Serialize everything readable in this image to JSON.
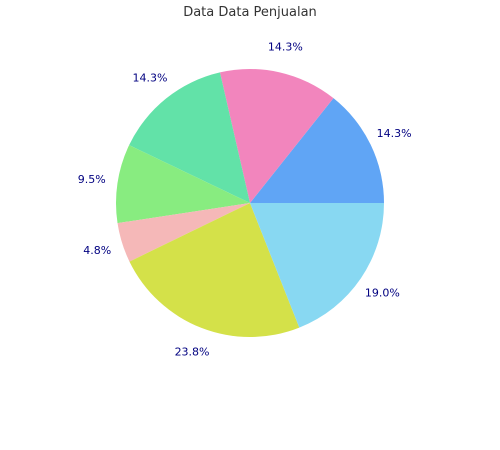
{
  "chart_data": {
    "type": "pie",
    "title": "Data Data Penjualan",
    "start": "right-horizontal",
    "direction": "counterclockwise",
    "slices": [
      {
        "value": 14.3,
        "label": "14.3%",
        "color": "#60a5f5"
      },
      {
        "value": 14.3,
        "label": "14.3%",
        "color": "#f285bd"
      },
      {
        "value": 14.3,
        "label": "14.3%",
        "color": "#62e2a8"
      },
      {
        "value": 9.5,
        "label": "9.5%",
        "color": "#88ec80"
      },
      {
        "value": 4.8,
        "label": "4.8%",
        "color": "#f5b8b8"
      },
      {
        "value": 23.8,
        "label": "23.8%",
        "color": "#d4e149"
      },
      {
        "value": 19.0,
        "label": "19.0%",
        "color": "#88d8f2"
      }
    ]
  }
}
